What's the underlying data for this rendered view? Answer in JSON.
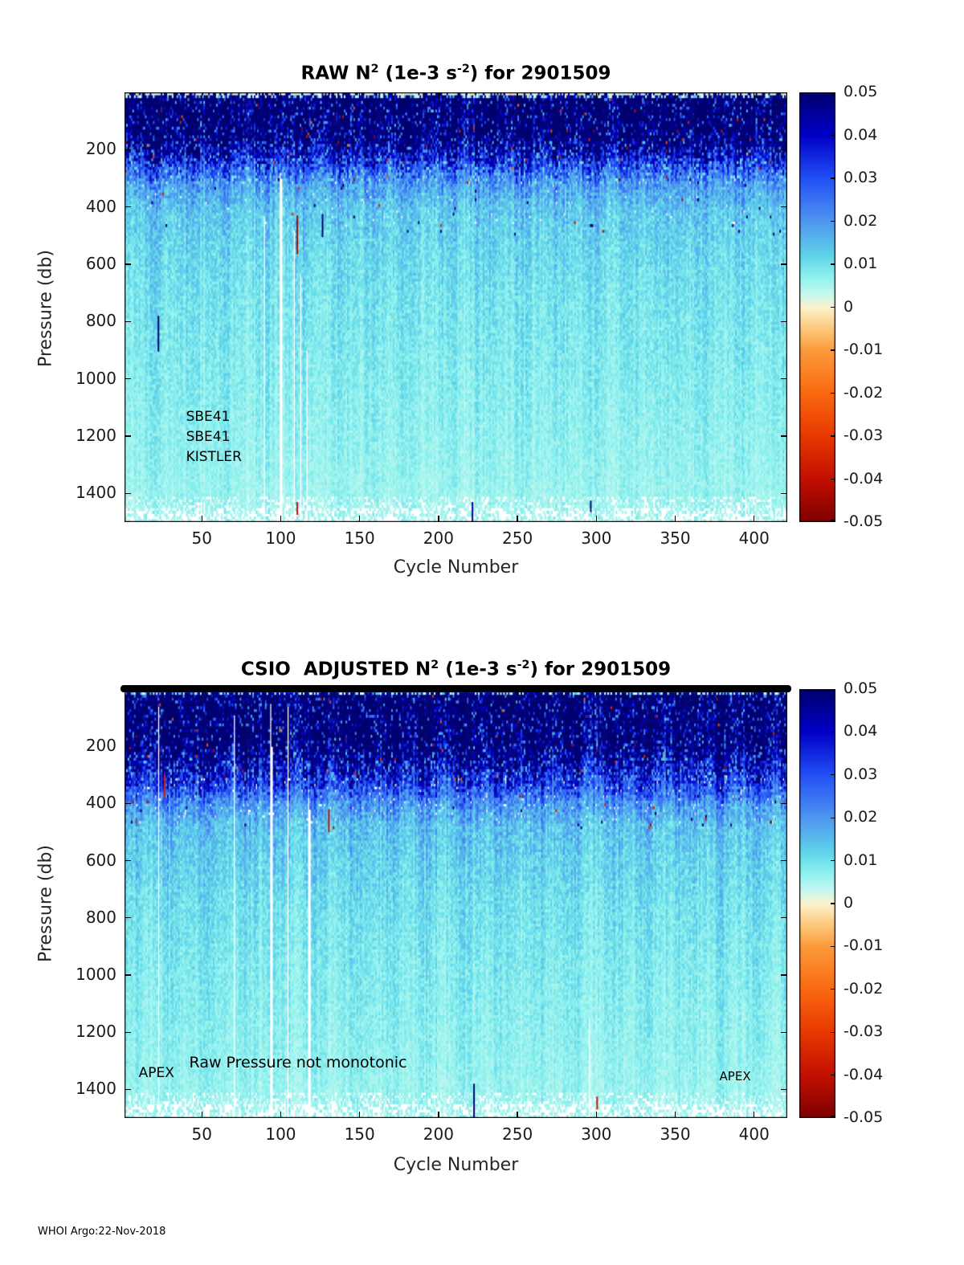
{
  "figure": {
    "footer": "WHOI Argo:22-Nov-2018"
  },
  "colormap_stops": [
    {
      "v": 0.05,
      "color": "#00006E"
    },
    {
      "v": 0.04,
      "color": "#0000C8"
    },
    {
      "v": 0.03,
      "color": "#2350F5"
    },
    {
      "v": 0.02,
      "color": "#4F96F0"
    },
    {
      "v": 0.012,
      "color": "#5FD4E9"
    },
    {
      "v": 0.007,
      "color": "#8FF2EE"
    },
    {
      "v": 0.003,
      "color": "#C6F8F0"
    },
    {
      "v": 0.0,
      "color": "#FDF3CC"
    },
    {
      "v": -0.005,
      "color": "#FCC97D"
    },
    {
      "v": -0.01,
      "color": "#FB9B3B"
    },
    {
      "v": -0.02,
      "color": "#F96A10"
    },
    {
      "v": -0.03,
      "color": "#E83900"
    },
    {
      "v": -0.04,
      "color": "#C31000"
    },
    {
      "v": -0.05,
      "color": "#7E0000"
    }
  ],
  "chart_data": [
    {
      "type": "heatmap",
      "title": "RAW N^2 (1e-3 s^-2) for 2901509",
      "title_parts": [
        "RAW N",
        "2",
        " (1e-3 s",
        "-2",
        ") for 2901509"
      ],
      "xlabel": "Cycle Number",
      "ylabel": "Pressure (db)",
      "x_range": [
        1,
        421
      ],
      "y_range": [
        0,
        1500
      ],
      "y_direction": "down",
      "x_ticks": [
        50,
        100,
        150,
        200,
        250,
        300,
        350,
        400
      ],
      "y_ticks": [
        200,
        400,
        600,
        800,
        1000,
        1200,
        1400
      ],
      "colorbar": {
        "max": 0.05,
        "min": -0.05,
        "tick_labels": [
          "0.05",
          "0.04",
          "0.03",
          "0.02",
          "0.01",
          "0",
          "-0.01",
          "-0.02",
          "-0.03",
          "-0.04",
          "-0.05"
        ]
      },
      "annotations": [
        {
          "text": "SBE41",
          "x": 40,
          "y": 1138,
          "size": 17
        },
        {
          "text": "SBE41",
          "x": 40,
          "y": 1208,
          "size": 17
        },
        {
          "text": "KISTLER",
          "x": 40,
          "y": 1279,
          "size": 17
        }
      ],
      "top_black_bar": false,
      "field_model": {
        "seed": 20181122,
        "n_cycles": 420,
        "depth_step": 10,
        "max_depth": 1500,
        "profile_depths": [
          0,
          10,
          25,
          150,
          270,
          330,
          420,
          550,
          700,
          900,
          1100,
          1300,
          1500
        ],
        "profile_values": [
          0.002,
          0.03,
          0.062,
          0.056,
          0.028,
          0.018,
          0.013,
          0.011,
          0.0095,
          0.0085,
          0.0075,
          0.0065,
          0.0055
        ],
        "noise_base": 0.65,
        "noise_span": 0.7,
        "sparse_below_depth": 1410,
        "band_dropout": {
          "d0": 300,
          "d1": 470,
          "p": 0.012
        },
        "missing_columns": [
          {
            "col": 89,
            "from_depth": 430
          },
          {
            "col": 99,
            "from_depth": 280
          },
          {
            "col": 100,
            "from_depth": 300
          },
          {
            "col": 108,
            "from_depth": 480
          },
          {
            "col": 112,
            "from_depth": 640
          },
          {
            "col": 116,
            "from_depth": 900
          }
        ],
        "features": [
          {
            "col": 22,
            "d0": 780,
            "d1": 905,
            "v": 0.05
          },
          {
            "col": 110,
            "d0": 430,
            "d1": 565,
            "v": -0.045
          },
          {
            "col": 126,
            "d0": 425,
            "d1": 505,
            "v": 0.05
          },
          {
            "col": 110,
            "d0": 1430,
            "d1": 1475,
            "v": -0.04
          },
          {
            "col": 221,
            "d0": 1430,
            "d1": 1500,
            "v": 0.045
          },
          {
            "col": 296,
            "d0": 1425,
            "d1": 1465,
            "v": 0.05
          }
        ]
      }
    },
    {
      "type": "heatmap",
      "title": "CSIO ADJUSTED N^2 (1e-3 s^-2) for 2901509",
      "title_parts": [
        "CSIO  ADJUSTED N",
        "2",
        " (1e-3 s",
        "-2",
        ") for 2901509"
      ],
      "xlabel": "Cycle Number",
      "ylabel": "Pressure (db)",
      "x_range": [
        1,
        421
      ],
      "y_range": [
        0,
        1500
      ],
      "y_direction": "down",
      "x_ticks": [
        50,
        100,
        150,
        200,
        250,
        300,
        350,
        400
      ],
      "y_ticks": [
        200,
        400,
        600,
        800,
        1000,
        1200,
        1400
      ],
      "colorbar": {
        "max": 0.05,
        "min": -0.05,
        "tick_labels": [
          "0.05",
          "0.04",
          "0.03",
          "0.02",
          "0.01",
          "0",
          "-0.01",
          "-0.02",
          "-0.03",
          "-0.04",
          "-0.05"
        ]
      },
      "annotations": [
        {
          "text": "APEX",
          "x": 10,
          "y": 1350,
          "size": 17
        },
        {
          "text": "Raw Pressure not monotonic",
          "x": 42,
          "y": 1315,
          "size": 19
        },
        {
          "text": "APEX",
          "x": 378,
          "y": 1360,
          "size": 15
        }
      ],
      "top_black_bar": true,
      "field_model": {
        "seed": 29015,
        "n_cycles": 420,
        "depth_step": 10,
        "max_depth": 1500,
        "profile_depths": [
          0,
          10,
          25,
          180,
          320,
          400,
          480,
          600,
          750,
          950,
          1150,
          1350,
          1500
        ],
        "profile_values": [
          0.002,
          0.03,
          0.062,
          0.058,
          0.034,
          0.02,
          0.014,
          0.012,
          0.01,
          0.0085,
          0.0075,
          0.0065,
          0.0055
        ],
        "noise_base": 0.65,
        "noise_span": 0.7,
        "sparse_below_depth": 1410,
        "band_dropout": {
          "d0": 300,
          "d1": 470,
          "p": 0.03
        },
        "missing_columns": [
          {
            "col": 22,
            "from_depth": 60
          },
          {
            "col": 70,
            "from_depth": 90
          },
          {
            "col": 93,
            "from_depth": 50
          },
          {
            "col": 94,
            "from_depth": 200
          },
          {
            "col": 104,
            "from_depth": 60
          },
          {
            "col": 117,
            "from_depth": 380
          },
          {
            "col": 118,
            "from_depth": 420
          },
          {
            "col": 295,
            "from_depth": 1150
          }
        ],
        "features": [
          {
            "col": 26,
            "d0": 300,
            "d1": 380,
            "v": -0.035
          },
          {
            "col": 130,
            "d0": 420,
            "d1": 500,
            "v": -0.04
          },
          {
            "col": 222,
            "d0": 1380,
            "d1": 1500,
            "v": 0.05
          },
          {
            "col": 300,
            "d0": 1425,
            "d1": 1470,
            "v": -0.04
          }
        ]
      }
    }
  ]
}
